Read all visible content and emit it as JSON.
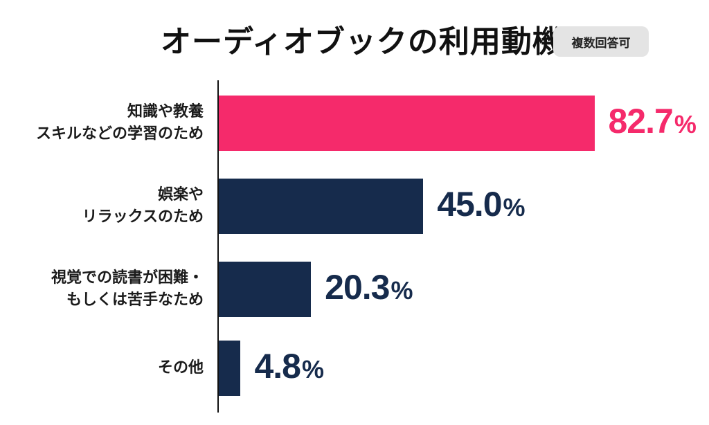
{
  "title": "オーディオブックの利用動機",
  "note": "複数回答可",
  "colors": {
    "highlight": "#f52a6b",
    "default": "#162b4c"
  },
  "chart_data": {
    "type": "bar",
    "orientation": "horizontal",
    "title": "オーディオブックの利用動機",
    "categories": [
      [
        "知識や教養",
        "スキルなどの学習のため"
      ],
      [
        "娯楽や",
        "リラックスのため"
      ],
      [
        "視覚での読書が困難・",
        "もしくは苦手なため"
      ],
      [
        "その他"
      ]
    ],
    "values": [
      82.7,
      45.0,
      20.3,
      4.8
    ],
    "value_labels": [
      "82.7",
      "45.0",
      "20.3",
      "4.8"
    ],
    "unit": "%",
    "xlim": [
      0,
      100
    ],
    "highlight_index": 0,
    "grid": false,
    "legend": "none"
  }
}
